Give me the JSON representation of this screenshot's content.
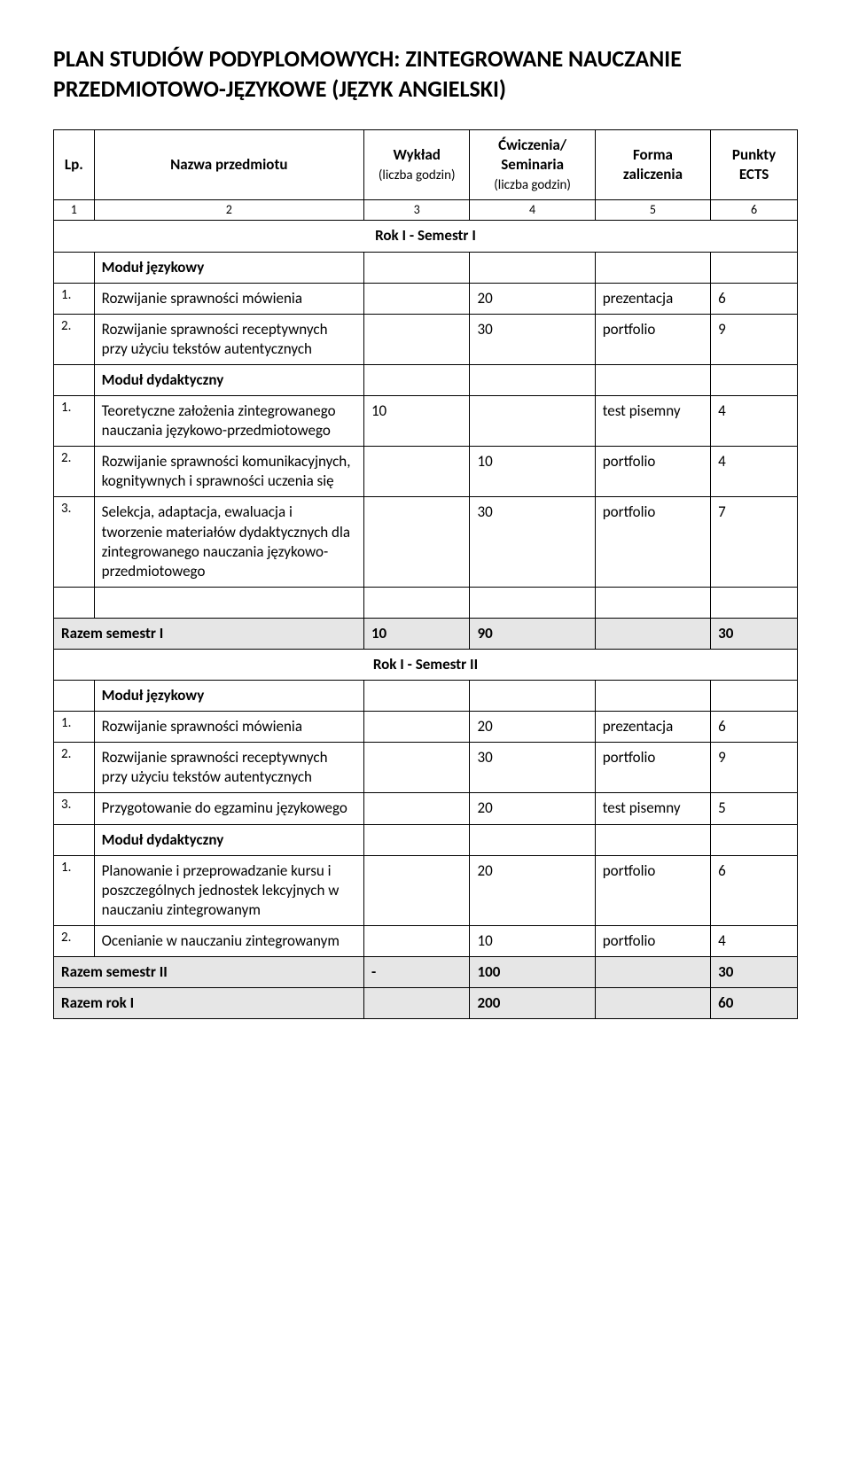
{
  "title": "PLAN STUDIÓW PODYPLOMOWYCH: ZINTEGROWANE NAUCZANIE PRZEDMIOTOWO-JĘZYKOWE (JĘZYK ANGIELSKI)",
  "headers": {
    "lp": "Lp.",
    "name": "Nazwa przedmiotu",
    "wyk": "Wykład",
    "wyk_sub": "(liczba godzin)",
    "cw": "Ćwiczenia/ Seminaria",
    "cw_sub": "(liczba godzin)",
    "forma": "Forma zaliczenia",
    "ects": "Punkty ECTS"
  },
  "numrow": {
    "c1": "1",
    "c2": "2",
    "c3": "3",
    "c4": "4",
    "c5": "5",
    "c6": "6"
  },
  "sem1": {
    "title": "Rok I - Semestr I",
    "modA": "Moduł językowy",
    "r1": {
      "lp": "1.",
      "name": "Rozwijanie sprawności mówienia",
      "wyk": "",
      "cw": "20",
      "forma": "prezentacja",
      "ects": "6"
    },
    "r2": {
      "lp": "2.",
      "name": "Rozwijanie sprawności receptywnych przy użyciu tekstów autentycznych",
      "wyk": "",
      "cw": "30",
      "forma": "portfolio",
      "ects": "9"
    },
    "modB": "Moduł dydaktyczny",
    "r3": {
      "lp": "1.",
      "name": "Teoretyczne założenia zintegrowanego nauczania językowo-przedmiotowego",
      "wyk": "10",
      "cw": "",
      "forma": "test pisemny",
      "ects": "4"
    },
    "r4": {
      "lp": "2.",
      "name": "Rozwijanie sprawności komunikacyjnych, kognitywnych i sprawności uczenia się",
      "wyk": "",
      "cw": "10",
      "forma": "portfolio",
      "ects": "4"
    },
    "r5": {
      "lp": "3.",
      "name": "Selekcja, adaptacja, ewaluacja i tworzenie materiałów dydaktycznych dla zintegrowanego nauczania językowo-przedmiotowego",
      "wyk": "",
      "cw": "30",
      "forma": "portfolio",
      "ects": "7"
    },
    "sum": {
      "label": "Razem semestr I",
      "wyk": "10",
      "cw": "90",
      "forma": "",
      "ects": "30"
    }
  },
  "sem2": {
    "title": "Rok I - Semestr II",
    "modA": "Moduł językowy",
    "r1": {
      "lp": "1.",
      "name": "Rozwijanie sprawności mówienia",
      "wyk": "",
      "cw": "20",
      "forma": "prezentacja",
      "ects": "6"
    },
    "r2": {
      "lp": "2.",
      "name": "Rozwijanie sprawności receptywnych przy użyciu tekstów autentycznych",
      "wyk": "",
      "cw": "30",
      "forma": "portfolio",
      "ects": "9"
    },
    "r3": {
      "lp": "3.",
      "name": "Przygotowanie do egzaminu językowego",
      "wyk": "",
      "cw": "20",
      "forma": "test pisemny",
      "ects": "5"
    },
    "modB": "Moduł dydaktyczny",
    "r4": {
      "lp": "1.",
      "name": "Planowanie i przeprowadzanie kursu i poszczególnych jednostek lekcyjnych w nauczaniu zintegrowanym",
      "wyk": "",
      "cw": "20",
      "forma": "portfolio",
      "ects": "6"
    },
    "r5": {
      "lp": "2.",
      "name": "Ocenianie w nauczaniu zintegrowanym",
      "wyk": "",
      "cw": "10",
      "forma": "portfolio",
      "ects": "4"
    },
    "sum": {
      "label": "Razem semestr II",
      "wyk": "-",
      "cw": "100",
      "forma": "",
      "ects": "30"
    }
  },
  "year": {
    "label": "Razem rok I",
    "wyk": "",
    "cw": "200",
    "forma": "",
    "ects": "60"
  }
}
